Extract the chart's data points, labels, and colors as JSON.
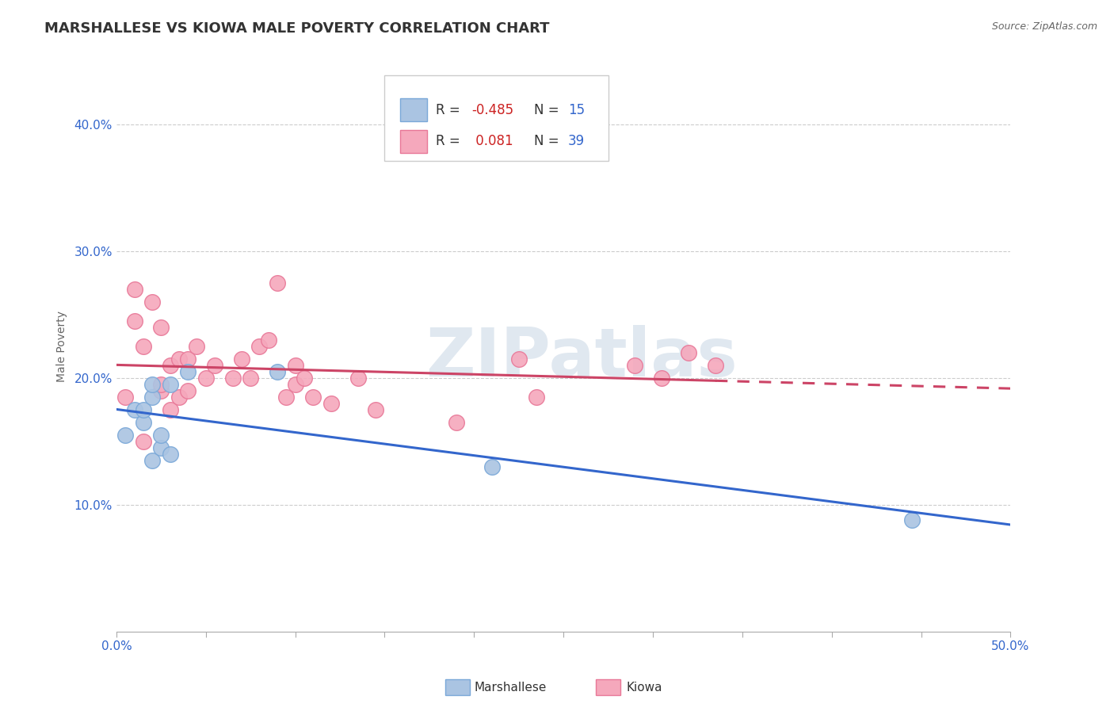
{
  "title": "MARSHALLESE VS KIOWA MALE POVERTY CORRELATION CHART",
  "source": "Source: ZipAtlas.com",
  "ylabel": "Male Poverty",
  "xlim": [
    0.0,
    0.5
  ],
  "ylim": [
    0.0,
    0.45
  ],
  "xticks": [
    0.0,
    0.05,
    0.1,
    0.15,
    0.2,
    0.25,
    0.3,
    0.35,
    0.4,
    0.45,
    0.5
  ],
  "xtick_labels_show": [
    "0.0%",
    "",
    "",
    "",
    "",
    "",
    "",
    "",
    "",
    "",
    "50.0%"
  ],
  "yticks": [
    0.1,
    0.2,
    0.3,
    0.4
  ],
  "ytick_labels": [
    "10.0%",
    "20.0%",
    "30.0%",
    "40.0%"
  ],
  "grid_color": "#cccccc",
  "background_color": "#ffffff",
  "watermark": "ZIPatlas",
  "marshallese_color": "#aac4e2",
  "kiowa_color": "#f5a8bc",
  "marshallese_edge": "#7aa8d8",
  "kiowa_edge": "#e87898",
  "blue_line_color": "#3366cc",
  "pink_line_color": "#cc4466",
  "R_marshallese": -0.485,
  "N_marshallese": 15,
  "R_kiowa": 0.081,
  "N_kiowa": 39,
  "legend_R_color": "#cc2222",
  "legend_N_color": "#3366cc",
  "marshallese_x": [
    0.005,
    0.01,
    0.015,
    0.015,
    0.02,
    0.02,
    0.02,
    0.025,
    0.025,
    0.03,
    0.03,
    0.04,
    0.09,
    0.21,
    0.445
  ],
  "marshallese_y": [
    0.155,
    0.175,
    0.165,
    0.175,
    0.185,
    0.195,
    0.135,
    0.145,
    0.155,
    0.195,
    0.14,
    0.205,
    0.205,
    0.13,
    0.088
  ],
  "kiowa_x": [
    0.005,
    0.01,
    0.01,
    0.015,
    0.015,
    0.02,
    0.025,
    0.025,
    0.025,
    0.03,
    0.03,
    0.035,
    0.035,
    0.04,
    0.04,
    0.045,
    0.05,
    0.055,
    0.065,
    0.07,
    0.075,
    0.08,
    0.085,
    0.09,
    0.095,
    0.1,
    0.1,
    0.105,
    0.11,
    0.12,
    0.135,
    0.145,
    0.19,
    0.225,
    0.235,
    0.29,
    0.305,
    0.32,
    0.335
  ],
  "kiowa_y": [
    0.185,
    0.245,
    0.27,
    0.15,
    0.225,
    0.26,
    0.19,
    0.195,
    0.24,
    0.175,
    0.21,
    0.185,
    0.215,
    0.19,
    0.215,
    0.225,
    0.2,
    0.21,
    0.2,
    0.215,
    0.2,
    0.225,
    0.23,
    0.275,
    0.185,
    0.195,
    0.21,
    0.2,
    0.185,
    0.18,
    0.2,
    0.175,
    0.165,
    0.215,
    0.185,
    0.21,
    0.2,
    0.22,
    0.21
  ],
  "title_fontsize": 13,
  "axis_label_fontsize": 10,
  "tick_fontsize": 11,
  "legend_fontsize": 12
}
